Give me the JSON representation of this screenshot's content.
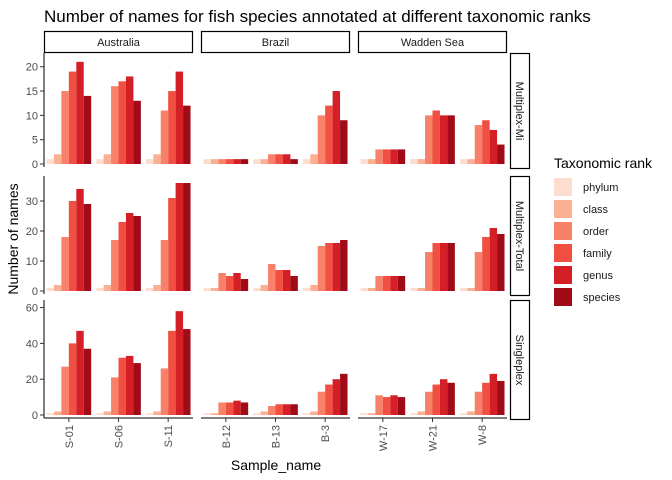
{
  "chart_data": {
    "type": "bar",
    "title": "Number of names for fish species annotated at different taxonomic ranks",
    "xlabel": "Sample_name",
    "ylabel": "Number of names",
    "legend": {
      "title": "Taxonomic rank",
      "position": "right",
      "entries": [
        "phylum",
        "class",
        "order",
        "family",
        "genus",
        "species"
      ]
    },
    "series_colors": [
      "#FCDDD0",
      "#FBAF93",
      "#F8816A",
      "#F04F41",
      "#D41F26",
      "#A00B17"
    ],
    "columns": [
      {
        "label": "Australia",
        "categories": [
          "S-01",
          "S-06",
          "S-11"
        ]
      },
      {
        "label": "Brazil",
        "categories": [
          "B-12",
          "B-13",
          "B-3"
        ]
      },
      {
        "label": "Wadden Sea",
        "categories": [
          "W-17",
          "W-21",
          "W-8"
        ]
      }
    ],
    "rows": [
      {
        "label": "Multiplex-Mi",
        "ylim": [
          0,
          22
        ],
        "ticks": [
          0,
          5,
          10,
          15,
          20
        ],
        "values": [
          [
            [
              1,
              2,
              15,
              19,
              21,
              14
            ],
            [
              1,
              2,
              16,
              17,
              18,
              13
            ],
            [
              1,
              2,
              11,
              15,
              19,
              12
            ]
          ],
          [
            [
              1,
              1,
              1,
              1,
              1,
              1
            ],
            [
              1,
              1,
              2,
              2,
              2,
              1
            ],
            [
              1,
              2,
              10,
              12,
              15,
              9
            ]
          ],
          [
            [
              1,
              1,
              3,
              3,
              3,
              3
            ],
            [
              1,
              1,
              10,
              11,
              10,
              10
            ],
            [
              1,
              1,
              8,
              9,
              7,
              4
            ]
          ]
        ]
      },
      {
        "label": "Multiplex-Total",
        "ylim": [
          0,
          37
        ],
        "ticks": [
          0,
          10,
          20,
          30
        ],
        "values": [
          [
            [
              1,
              2,
              18,
              30,
              34,
              29
            ],
            [
              1,
              2,
              17,
              23,
              26,
              25
            ],
            [
              1,
              2,
              17,
              31,
              36,
              36
            ]
          ],
          [
            [
              1,
              1,
              6,
              5,
              6,
              4
            ],
            [
              1,
              2,
              9,
              7,
              7,
              5
            ],
            [
              1,
              2,
              15,
              16,
              16,
              17
            ]
          ],
          [
            [
              1,
              1,
              5,
              5,
              5,
              5
            ],
            [
              1,
              1,
              13,
              16,
              16,
              16
            ],
            [
              1,
              1,
              13,
              18,
              21,
              19
            ]
          ]
        ]
      },
      {
        "label": "Singleplex",
        "ylim": [
          0,
          62
        ],
        "ticks": [
          0,
          20,
          40,
          60
        ],
        "values": [
          [
            [
              1,
              2,
              27,
              40,
              47,
              37
            ],
            [
              1,
              2,
              21,
              32,
              33,
              29
            ],
            [
              1,
              2,
              26,
              47,
              58,
              48
            ]
          ],
          [
            [
              1,
              1,
              7,
              7,
              8,
              7
            ],
            [
              1,
              2,
              5,
              6,
              6,
              6
            ],
            [
              1,
              2,
              13,
              17,
              20,
              23
            ]
          ],
          [
            [
              1,
              1,
              11,
              10,
              11,
              10
            ],
            [
              1,
              2,
              13,
              17,
              20,
              18
            ],
            [
              1,
              2,
              13,
              18,
              23,
              19
            ]
          ]
        ]
      }
    ]
  }
}
